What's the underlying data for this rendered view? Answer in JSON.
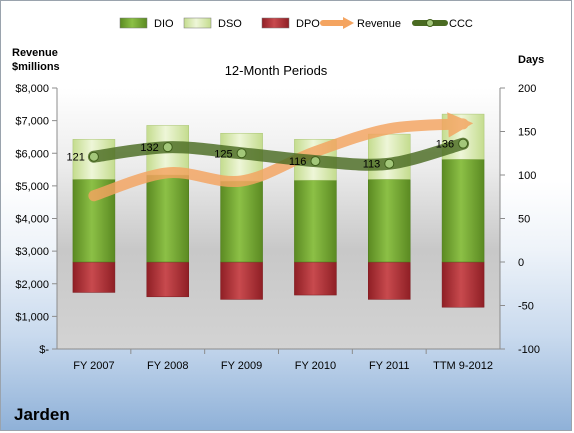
{
  "company": "Jarden",
  "chart_data": {
    "type": "bar",
    "title": "12-Month Periods",
    "ylabel_left": "Revenue $millions",
    "ylabel_right": "Days",
    "categories": [
      "FY 2007",
      "FY 2008",
      "FY 2009",
      "FY 2010",
      "FY 2011",
      "TTM 9-2012"
    ],
    "left_axis": {
      "min": 0,
      "max": 8000,
      "step": 1000,
      "ticks": [
        "$-",
        "$1,000",
        "$2,000",
        "$3,000",
        "$4,000",
        "$5,000",
        "$6,000",
        "$7,000",
        "$8,000"
      ]
    },
    "right_axis": {
      "min": -100,
      "max": 200,
      "step": 50,
      "ticks": [
        "-100",
        "-50",
        "0",
        "50",
        "100",
        "150",
        "200"
      ]
    },
    "series": [
      {
        "name": "DIO",
        "type": "stacked-bar",
        "axis": "right",
        "values": [
          95,
          100,
          93,
          94,
          95,
          118
        ],
        "color": "#6a9a2e"
      },
      {
        "name": "DSO",
        "type": "stacked-bar",
        "axis": "right",
        "values": [
          46,
          57,
          55,
          47,
          52,
          52
        ],
        "color": "#d6e7b2"
      },
      {
        "name": "DPO",
        "type": "stacked-bar",
        "axis": "right",
        "values": [
          -35,
          -40,
          -43,
          -38,
          -43,
          -52
        ],
        "color": "#b4373b"
      },
      {
        "name": "Revenue",
        "type": "line",
        "axis": "left",
        "values": [
          4700,
          5400,
          5150,
          6050,
          6750,
          6900
        ],
        "color": "#f4a460"
      },
      {
        "name": "CCC",
        "type": "line",
        "axis": "right",
        "values": [
          121,
          132,
          125,
          116,
          113,
          136
        ],
        "color": "#4a6b22"
      }
    ],
    "data_labels": [
      "121",
      "132",
      "125",
      "116",
      "113",
      "136"
    ],
    "legend": "top",
    "grid": false
  }
}
